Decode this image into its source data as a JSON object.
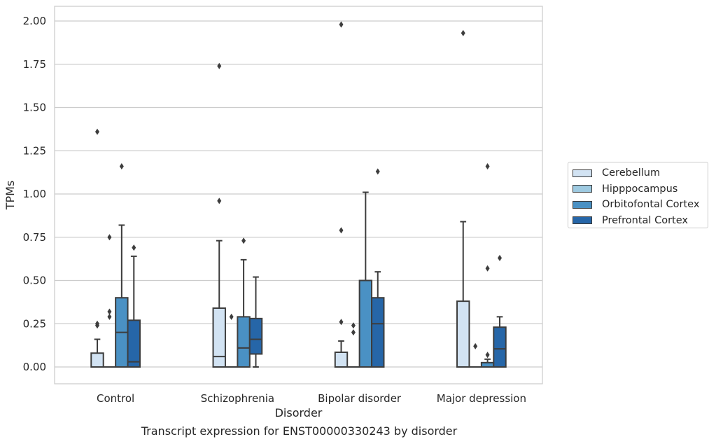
{
  "chart_data": {
    "type": "boxplot",
    "caption": "Transcript expression for ENST00000330243 by disorder",
    "xlabel": "Disorder",
    "ylabel": "TPMs",
    "ylim": [
      -0.095,
      2.08
    ],
    "yticks": [
      "0.00",
      "0.25",
      "0.50",
      "0.75",
      "1.00",
      "1.25",
      "1.50",
      "1.75",
      "2.00"
    ],
    "ytick_values": [
      0,
      0.25,
      0.5,
      0.75,
      1.0,
      1.25,
      1.5,
      1.75,
      2.0
    ],
    "grid": "horizontal",
    "legend_position": "right",
    "categories": [
      "Control",
      "Schizophrenia",
      "Bipolar disorder",
      "Major depression"
    ],
    "series": [
      {
        "name": "Cerebellum",
        "color": "#d2e3f3",
        "boxes": [
          {
            "whislo": 0,
            "q1": 0,
            "med": 0,
            "q3": 0.08,
            "whishi": 0.16,
            "fliers": [
              0.24,
              0.25,
              1.36
            ]
          },
          {
            "whislo": 0,
            "q1": 0,
            "med": 0.06,
            "q3": 0.34,
            "whishi": 0.73,
            "fliers": [
              0.96,
              1.74
            ]
          },
          {
            "whislo": 0,
            "q1": 0,
            "med": 0,
            "q3": 0.085,
            "whishi": 0.15,
            "fliers": [
              0.26,
              0.79,
              1.98
            ]
          },
          {
            "whislo": 0,
            "q1": 0,
            "med": 0,
            "q3": 0.38,
            "whishi": 0.84,
            "fliers": [
              1.93
            ]
          }
        ]
      },
      {
        "name": "Hipppocampus",
        "color": "#9ecae1",
        "boxes": [
          {
            "whislo": 0,
            "q1": 0,
            "med": 0,
            "q3": 0,
            "whishi": 0,
            "fliers": [
              0.29,
              0.32,
              0.75
            ]
          },
          {
            "whislo": 0,
            "q1": 0,
            "med": 0,
            "q3": 0,
            "whishi": 0,
            "fliers": [
              0.29
            ]
          },
          {
            "whislo": 0,
            "q1": 0,
            "med": 0,
            "q3": 0,
            "whishi": 0,
            "fliers": [
              0.2,
              0.24
            ]
          },
          {
            "whislo": 0,
            "q1": 0,
            "med": 0,
            "q3": 0,
            "whishi": 0,
            "fliers": [
              0.12
            ]
          }
        ]
      },
      {
        "name": "Orbitofontal Cortex",
        "color": "#4a91c4",
        "boxes": [
          {
            "whislo": 0,
            "q1": 0,
            "med": 0.2,
            "q3": 0.4,
            "whishi": 0.82,
            "fliers": [
              1.16
            ]
          },
          {
            "whislo": 0,
            "q1": 0,
            "med": 0.11,
            "q3": 0.29,
            "whishi": 0.62,
            "fliers": [
              0.73
            ]
          },
          {
            "whislo": 0,
            "q1": 0,
            "med": 0,
            "q3": 0.5,
            "whishi": 1.01,
            "fliers": []
          },
          {
            "whislo": 0,
            "q1": 0,
            "med": 0,
            "q3": 0.025,
            "whishi": 0.045,
            "fliers": [
              0.07,
              0.57,
              1.16
            ]
          }
        ]
      },
      {
        "name": "Prefrontal Cortex",
        "color": "#2666a8",
        "boxes": [
          {
            "whislo": 0,
            "q1": 0,
            "med": 0.03,
            "q3": 0.27,
            "whishi": 0.64,
            "fliers": [
              0.69
            ]
          },
          {
            "whislo": 0,
            "q1": 0.075,
            "med": 0.16,
            "q3": 0.28,
            "whishi": 0.52,
            "fliers": []
          },
          {
            "whislo": 0,
            "q1": 0,
            "med": 0.25,
            "q3": 0.4,
            "whishi": 0.55,
            "fliers": [
              1.13
            ]
          },
          {
            "whislo": 0,
            "q1": 0,
            "med": 0.105,
            "q3": 0.23,
            "whishi": 0.29,
            "fliers": [
              0.63
            ]
          }
        ]
      }
    ]
  }
}
